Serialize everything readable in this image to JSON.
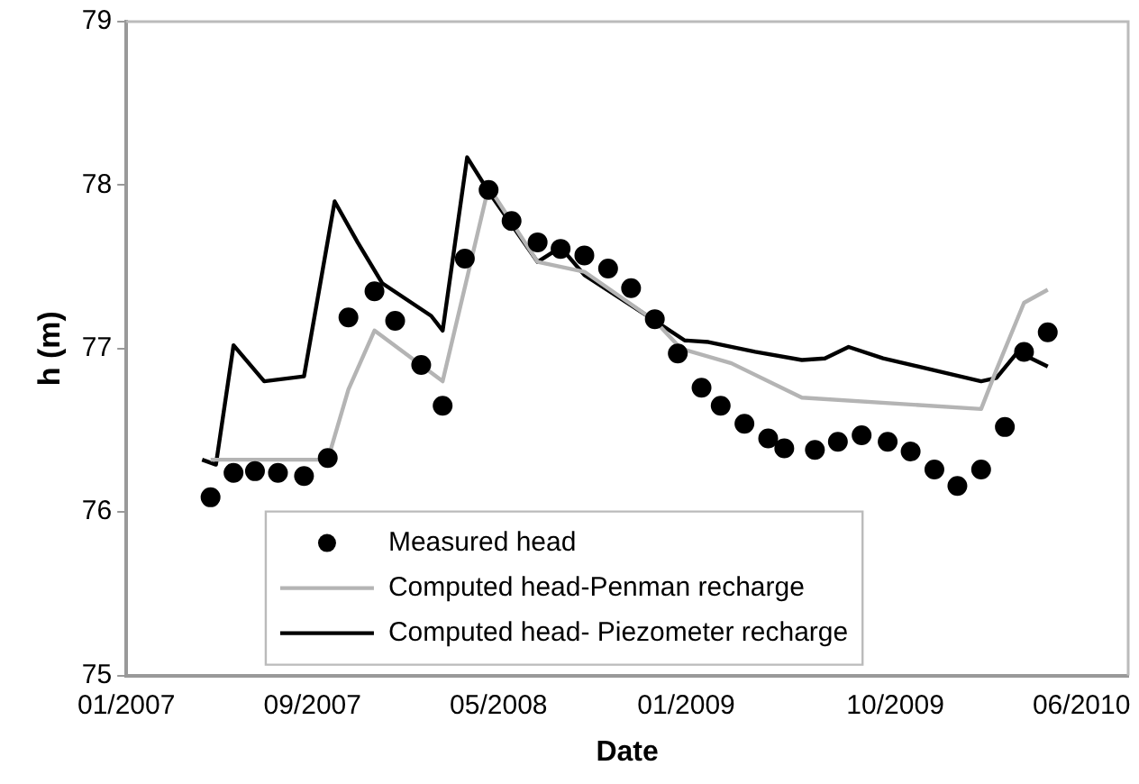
{
  "chart_data": {
    "type": "line",
    "xlabel": "Date",
    "ylabel": "h (m)",
    "xlim": [
      "2007-01-01",
      "2010-08-01"
    ],
    "xticks": [
      {
        "value": "2007-01-01",
        "label": "01/2007"
      },
      {
        "value": "2007-09-01",
        "label": "09/2007"
      },
      {
        "value": "2008-05-01",
        "label": "05/2008"
      },
      {
        "value": "2009-01-01",
        "label": "01/2009"
      },
      {
        "value": "2009-10-01",
        "label": "10/2009"
      },
      {
        "value": "2010-06-01",
        "label": "06/2010"
      }
    ],
    "ylim": [
      75,
      79
    ],
    "yticks": [
      75,
      76,
      77,
      78,
      79
    ],
    "grid": false,
    "legend": "bottom",
    "series": [
      {
        "name": "Measured head",
        "type": "scatter",
        "marker": "circle",
        "color": "#000000",
        "x": [
          "2007-04-21",
          "2007-05-21",
          "2007-06-18",
          "2007-07-18",
          "2007-08-21",
          "2007-09-21",
          "2007-10-18",
          "2007-11-21",
          "2007-12-18",
          "2008-01-21",
          "2008-02-18",
          "2008-03-18",
          "2008-04-18",
          "2008-05-18",
          "2008-06-21",
          "2008-07-21",
          "2008-08-21",
          "2008-09-21",
          "2008-10-21",
          "2008-11-21",
          "2008-12-21",
          "2009-01-21",
          "2009-02-15",
          "2009-03-18",
          "2009-04-18",
          "2009-05-09",
          "2009-06-18",
          "2009-07-18",
          "2009-08-18",
          "2009-09-21",
          "2009-10-21",
          "2009-11-21",
          "2009-12-21",
          "2010-01-21",
          "2010-02-21",
          "2010-03-18",
          "2010-04-18"
        ],
        "values": [
          76.09,
          76.24,
          76.25,
          76.24,
          76.22,
          76.33,
          77.19,
          77.35,
          77.17,
          76.9,
          76.65,
          77.55,
          77.97,
          77.78,
          77.65,
          77.61,
          77.57,
          77.49,
          77.37,
          77.18,
          76.97,
          76.76,
          76.65,
          76.54,
          76.45,
          76.39,
          76.38,
          76.43,
          76.47,
          76.43,
          76.37,
          76.26,
          76.16,
          76.26,
          76.52,
          76.98,
          77.1
        ]
      },
      {
        "name": "Computed head-Penman recharge",
        "type": "line",
        "marker": "none",
        "line_style": "solid",
        "color": "#b4b4b4",
        "x": [
          "2007-04-21",
          "2007-09-21",
          "2007-10-18",
          "2007-11-21",
          "2008-02-18",
          "2008-04-18",
          "2008-06-21",
          "2008-08-21",
          "2008-11-21",
          "2008-12-25",
          "2009-03-01",
          "2009-06-01",
          "2010-01-21",
          "2010-02-10",
          "2010-03-18",
          "2010-04-18"
        ],
        "values": [
          76.32,
          76.32,
          76.75,
          77.11,
          76.8,
          77.99,
          77.53,
          77.47,
          77.17,
          77.0,
          76.91,
          76.7,
          76.63,
          76.87,
          77.28,
          77.36
        ]
      },
      {
        "name": "Computed head- Piezometer recharge",
        "type": "line",
        "marker": "none",
        "line_style": "solid",
        "color": "#000000",
        "x": [
          "2007-04-10",
          "2007-04-28",
          "2007-05-21",
          "2007-06-30",
          "2007-08-21",
          "2007-09-30",
          "2007-10-30",
          "2007-12-01",
          "2008-02-03",
          "2008-02-18",
          "2008-03-21",
          "2008-04-18",
          "2008-06-21",
          "2008-07-21",
          "2008-08-21",
          "2008-11-21",
          "2008-12-30",
          "2009-01-30",
          "2009-04-01",
          "2009-06-01",
          "2009-07-01",
          "2009-08-01",
          "2009-09-15",
          "2010-01-21",
          "2010-02-10",
          "2010-03-10",
          "2010-04-18"
        ],
        "values": [
          76.32,
          76.29,
          77.02,
          76.8,
          76.83,
          77.9,
          77.65,
          77.4,
          77.2,
          77.11,
          78.17,
          77.96,
          77.53,
          77.62,
          77.45,
          77.17,
          77.05,
          77.04,
          76.98,
          76.93,
          76.94,
          77.01,
          76.94,
          76.8,
          76.82,
          76.98,
          76.89
        ]
      }
    ]
  }
}
